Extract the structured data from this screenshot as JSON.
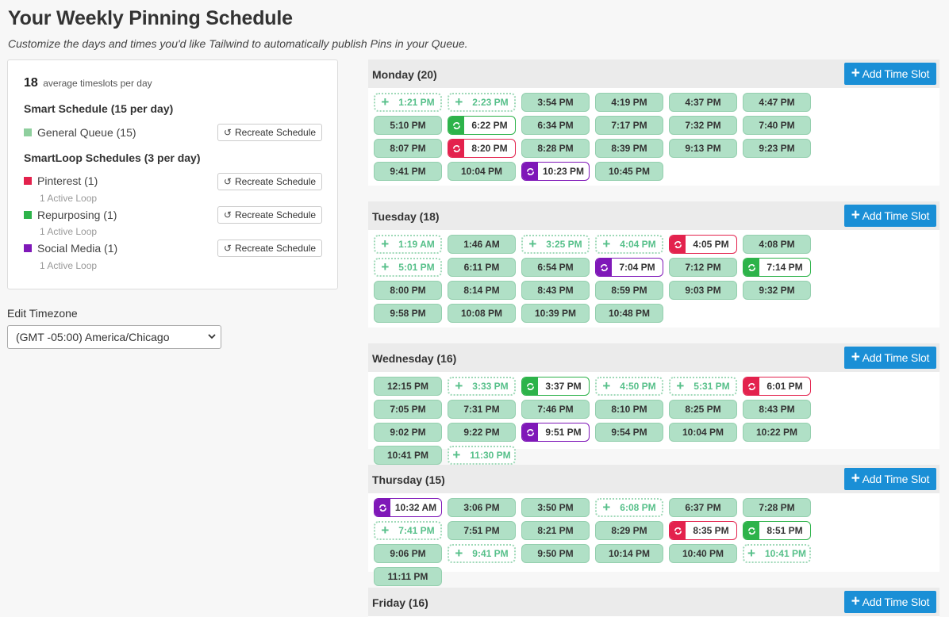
{
  "title": "Your Weekly Pinning Schedule",
  "subtitle": "Customize the days and times you'd like Tailwind to automatically publish Pins in your Queue.",
  "summary": {
    "avg_count": "18",
    "avg_text": "average timeslots per day",
    "smart_heading": "Smart Schedule (15 per day)",
    "general_label": "General Queue (15)",
    "smartloop_heading": "SmartLoop Schedules (3 per day)",
    "recreate_label": "Recreate Schedule",
    "loops": [
      {
        "label": "Pinterest (1)",
        "note": "1 Active Loop"
      },
      {
        "label": "Repurposing (1)",
        "note": "1 Active Loop"
      },
      {
        "label": "Social Media (1)",
        "note": "1 Active Loop"
      }
    ]
  },
  "colors": {
    "general": "#8fcf9e",
    "pinterest": "#e3224d",
    "repurposing": "#2db34a",
    "social": "#7f18b8",
    "add_button": "#1a8fd6"
  },
  "timezone": {
    "label": "Edit Timezone",
    "value": "(GMT -05:00) America/Chicago"
  },
  "add_slot_label": "Add Time Slot",
  "days": [
    {
      "title": "Monday (20)",
      "slots": [
        {
          "t": "1:21 PM",
          "k": "empty"
        },
        {
          "t": "2:23 PM",
          "k": "empty"
        },
        {
          "t": "3:54 PM",
          "k": "filled"
        },
        {
          "t": "4:19 PM",
          "k": "filled"
        },
        {
          "t": "4:37 PM",
          "k": "filled"
        },
        {
          "t": "4:47 PM",
          "k": "filled"
        },
        {
          "t": "5:10 PM",
          "k": "filled"
        },
        {
          "t": "6:22 PM",
          "k": "repurposing"
        },
        {
          "t": "6:34 PM",
          "k": "filled"
        },
        {
          "t": "7:17 PM",
          "k": "filled"
        },
        {
          "t": "7:32 PM",
          "k": "filled"
        },
        {
          "t": "7:40 PM",
          "k": "filled"
        },
        {
          "t": "8:07 PM",
          "k": "filled"
        },
        {
          "t": "8:20 PM",
          "k": "pinterest"
        },
        {
          "t": "8:28 PM",
          "k": "filled"
        },
        {
          "t": "8:39 PM",
          "k": "filled"
        },
        {
          "t": "9:13 PM",
          "k": "filled"
        },
        {
          "t": "9:23 PM",
          "k": "filled"
        },
        {
          "t": "9:41 PM",
          "k": "filled"
        },
        {
          "t": "10:04 PM",
          "k": "filled"
        },
        {
          "t": "10:23 PM",
          "k": "social"
        },
        {
          "t": "10:45 PM",
          "k": "filled"
        }
      ]
    },
    {
      "title": "Tuesday (18)",
      "slots": [
        {
          "t": "1:19 AM",
          "k": "empty"
        },
        {
          "t": "1:46 AM",
          "k": "filled"
        },
        {
          "t": "3:25 PM",
          "k": "empty"
        },
        {
          "t": "4:04 PM",
          "k": "empty"
        },
        {
          "t": "4:05 PM",
          "k": "pinterest"
        },
        {
          "t": "4:08 PM",
          "k": "filled"
        },
        {
          "t": "5:01 PM",
          "k": "empty"
        },
        {
          "t": "6:11 PM",
          "k": "filled"
        },
        {
          "t": "6:54 PM",
          "k": "filled"
        },
        {
          "t": "7:04 PM",
          "k": "social"
        },
        {
          "t": "7:12 PM",
          "k": "filled"
        },
        {
          "t": "7:14 PM",
          "k": "repurposing"
        },
        {
          "t": "8:00 PM",
          "k": "filled"
        },
        {
          "t": "8:14 PM",
          "k": "filled"
        },
        {
          "t": "8:43 PM",
          "k": "filled"
        },
        {
          "t": "8:59 PM",
          "k": "filled"
        },
        {
          "t": "9:03 PM",
          "k": "filled"
        },
        {
          "t": "9:32 PM",
          "k": "filled"
        },
        {
          "t": "9:58 PM",
          "k": "filled"
        },
        {
          "t": "10:08 PM",
          "k": "filled"
        },
        {
          "t": "10:39 PM",
          "k": "filled"
        },
        {
          "t": "10:48 PM",
          "k": "filled"
        }
      ]
    },
    {
      "title": "Wednesday (16)",
      "slots": [
        {
          "t": "12:15 PM",
          "k": "filled"
        },
        {
          "t": "3:33 PM",
          "k": "empty"
        },
        {
          "t": "3:37 PM",
          "k": "repurposing"
        },
        {
          "t": "4:50 PM",
          "k": "empty"
        },
        {
          "t": "5:31 PM",
          "k": "empty"
        },
        {
          "t": "6:01 PM",
          "k": "pinterest"
        },
        {
          "t": "7:05 PM",
          "k": "filled"
        },
        {
          "t": "7:31 PM",
          "k": "filled"
        },
        {
          "t": "7:46 PM",
          "k": "filled"
        },
        {
          "t": "8:10 PM",
          "k": "filled"
        },
        {
          "t": "8:25 PM",
          "k": "filled"
        },
        {
          "t": "8:43 PM",
          "k": "filled"
        },
        {
          "t": "9:02 PM",
          "k": "filled"
        },
        {
          "t": "9:22 PM",
          "k": "filled"
        },
        {
          "t": "9:51 PM",
          "k": "social"
        },
        {
          "t": "9:54 PM",
          "k": "filled"
        },
        {
          "t": "10:04 PM",
          "k": "filled"
        },
        {
          "t": "10:22 PM",
          "k": "filled"
        },
        {
          "t": "10:41 PM",
          "k": "filled"
        },
        {
          "t": "11:30 PM",
          "k": "empty"
        }
      ]
    },
    {
      "title": "Thursday (15)",
      "slots": [
        {
          "t": "10:32 AM",
          "k": "social"
        },
        {
          "t": "3:06 PM",
          "k": "filled"
        },
        {
          "t": "3:50 PM",
          "k": "filled"
        },
        {
          "t": "6:08 PM",
          "k": "empty"
        },
        {
          "t": "6:37 PM",
          "k": "filled"
        },
        {
          "t": "7:28 PM",
          "k": "filled"
        },
        {
          "t": "7:41 PM",
          "k": "empty"
        },
        {
          "t": "7:51 PM",
          "k": "filled"
        },
        {
          "t": "8:21 PM",
          "k": "filled"
        },
        {
          "t": "8:29 PM",
          "k": "filled"
        },
        {
          "t": "8:35 PM",
          "k": "pinterest"
        },
        {
          "t": "8:51 PM",
          "k": "repurposing"
        },
        {
          "t": "9:06 PM",
          "k": "filled"
        },
        {
          "t": "9:41 PM",
          "k": "empty"
        },
        {
          "t": "9:50 PM",
          "k": "filled"
        },
        {
          "t": "10:14 PM",
          "k": "filled"
        },
        {
          "t": "10:40 PM",
          "k": "filled"
        },
        {
          "t": "10:41 PM",
          "k": "empty"
        },
        {
          "t": "11:11 PM",
          "k": "filled"
        }
      ]
    },
    {
      "title": "Friday (16)",
      "slots": []
    }
  ]
}
